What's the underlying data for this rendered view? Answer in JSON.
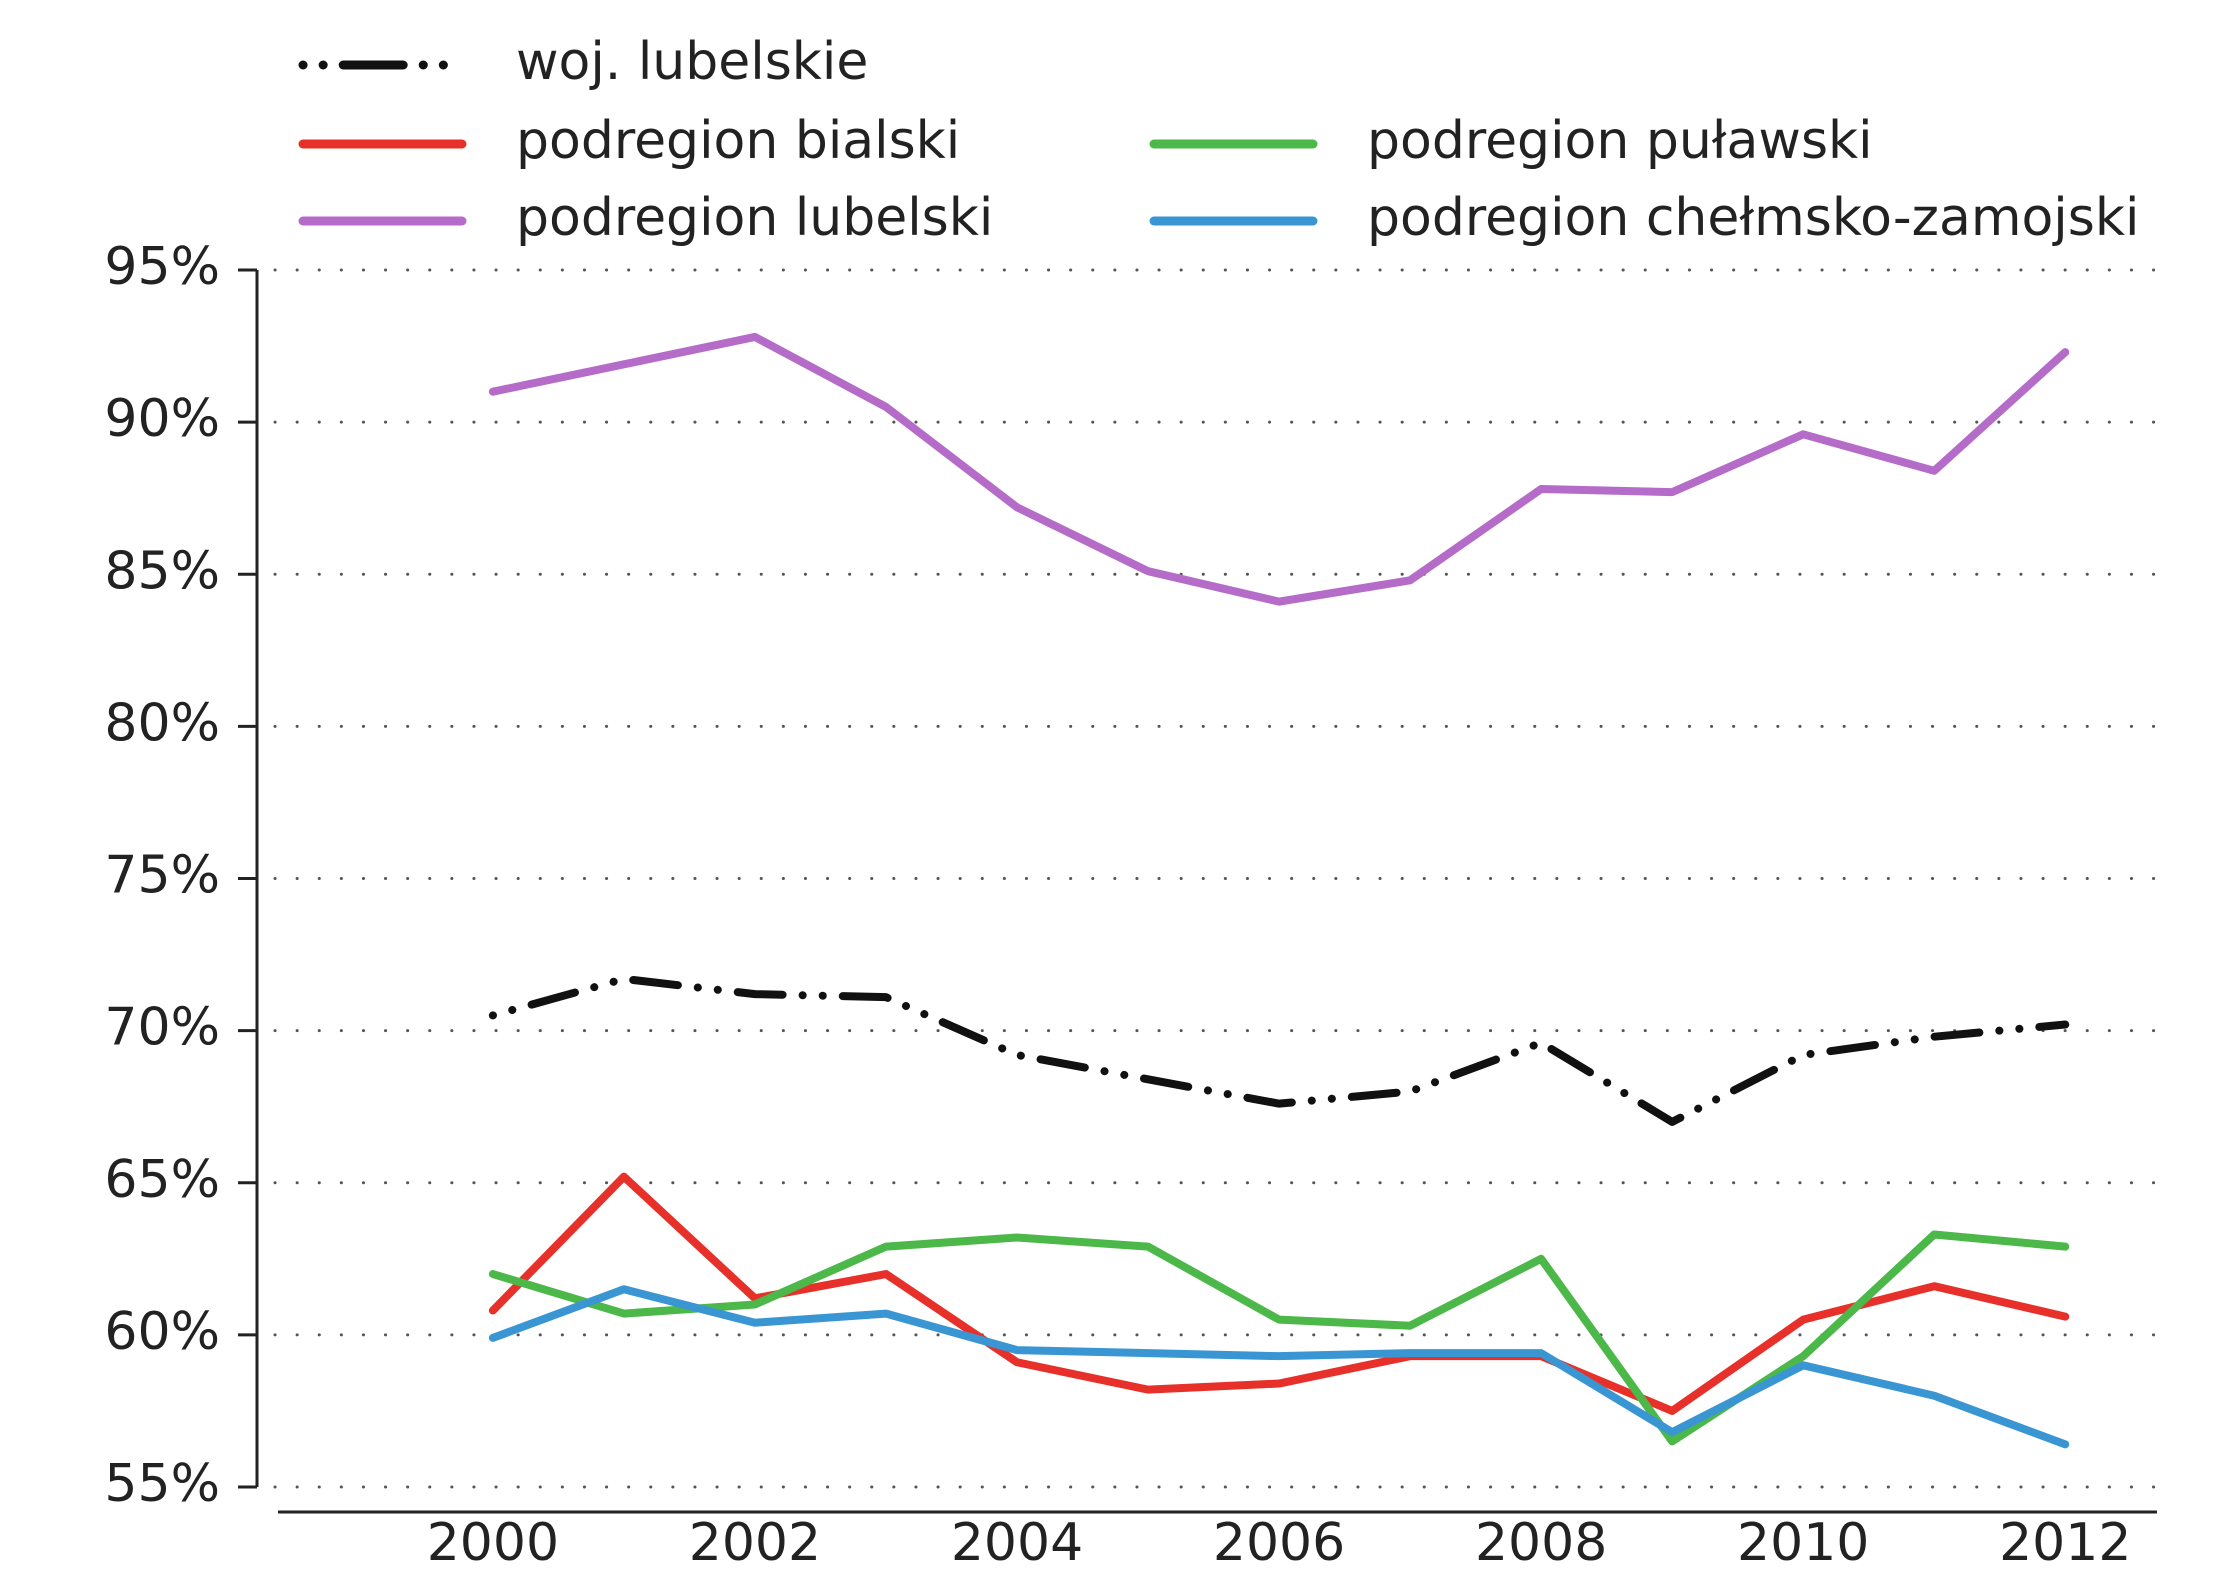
{
  "chart_data": {
    "type": "line",
    "x": [
      2000,
      2001,
      2002,
      2003,
      2004,
      2005,
      2006,
      2007,
      2008,
      2009,
      2010,
      2011,
      2012
    ],
    "series": [
      {
        "name": "woj. lubelskie",
        "color": "#111111",
        "dash": "dashdot",
        "values": [
          70.5,
          71.7,
          71.2,
          71.1,
          69.2,
          68.4,
          67.6,
          68.0,
          69.6,
          67.0,
          69.2,
          69.8,
          70.2
        ]
      },
      {
        "name": "podregion bialski",
        "color": "#e8302a",
        "values": [
          60.8,
          65.2,
          61.2,
          62.0,
          59.1,
          58.2,
          58.4,
          59.3,
          59.3,
          57.5,
          60.5,
          61.6,
          60.6
        ]
      },
      {
        "name": "podregion lubelski",
        "color": "#b56cc8",
        "values": [
          91.0,
          91.9,
          92.8,
          90.5,
          87.2,
          85.1,
          84.1,
          84.8,
          87.8,
          87.7,
          89.6,
          88.4,
          92.3
        ]
      },
      {
        "name": "podregion puławski",
        "color": "#4cb849",
        "values": [
          62.0,
          60.7,
          61.0,
          62.9,
          63.2,
          62.9,
          60.5,
          60.3,
          62.5,
          56.5,
          59.3,
          63.3,
          62.9
        ]
      },
      {
        "name": "podregion chełmsko-zamojski",
        "color": "#3a96d2",
        "values": [
          59.9,
          61.5,
          60.4,
          60.7,
          59.5,
          59.4,
          59.3,
          59.4,
          59.4,
          56.8,
          59.0,
          58.0,
          56.4
        ]
      }
    ],
    "xlim": [
      1998.2,
      2012.7
    ],
    "xticks": [
      2000,
      2002,
      2004,
      2006,
      2008,
      2010,
      2012
    ],
    "ylim": [
      55,
      95
    ],
    "yticks": [
      {
        "value": 55,
        "label": "55%"
      },
      {
        "value": 60,
        "label": "60%"
      },
      {
        "value": 65,
        "label": "65%"
      },
      {
        "value": 70,
        "label": "70%"
      },
      {
        "value": 75,
        "label": "75%"
      },
      {
        "value": 80,
        "label": "80%"
      },
      {
        "value": 85,
        "label": "85%"
      },
      {
        "value": 90,
        "label": "90%"
      },
      {
        "value": 95,
        "label": "95%"
      }
    ],
    "grid": true
  }
}
